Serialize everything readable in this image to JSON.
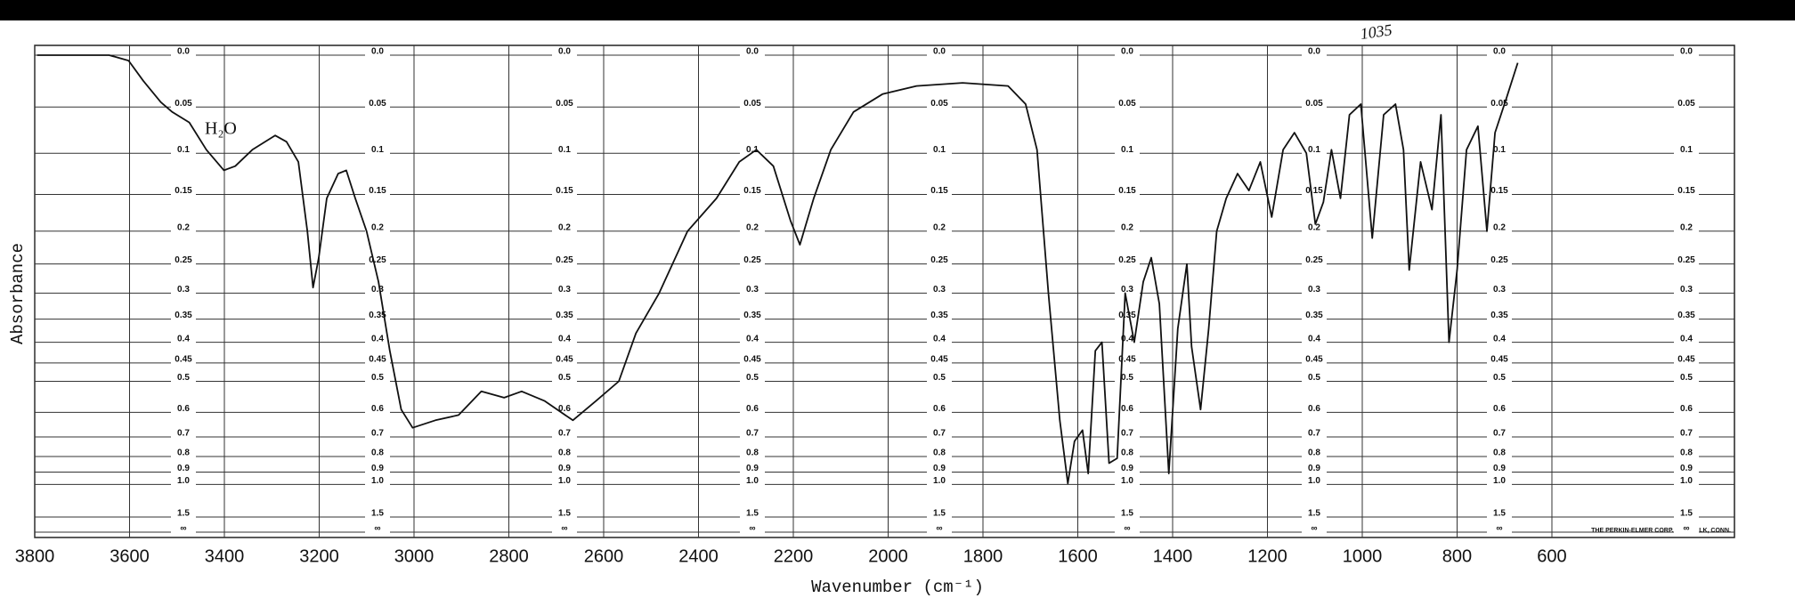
{
  "chart_data": {
    "type": "line",
    "x_label": "Wavenumber (cm⁻¹)",
    "y_label": "Absorbance",
    "yscale": "absorbance",
    "color": "#111111",
    "grid": true,
    "annotations": [
      "H₂O",
      "1035",
      "THE PERKIN-ELMER CORP. NORWALK, CONN."
    ],
    "xlim": [
      3800,
      215
    ],
    "ylim": [
      0,
      null
    ],
    "xticks": [
      3800,
      3600,
      3400,
      3200,
      3000,
      2800,
      2600,
      2400,
      2200,
      2000,
      1800,
      1600,
      1400,
      1200,
      1000,
      800,
      600
    ],
    "yticks": [
      {
        "value": 0,
        "label": "0.0"
      },
      0.05,
      0.1,
      0.15,
      0.2,
      0.25,
      0.3,
      0.35,
      0.4,
      0.45,
      0.5,
      0.6,
      0.7,
      0.8,
      0.9,
      {
        "value": 1,
        "label": "1.0"
      },
      1.5,
      {
        "value": null,
        "label": "∞"
      }
    ],
    "x": [
      3795,
      3643,
      3602,
      3571,
      3534,
      3510,
      3474,
      3438,
      3401,
      3377,
      3341,
      3293,
      3269,
      3244,
      3225,
      3213,
      3201,
      3184,
      3160,
      3143,
      3124,
      3100,
      3075,
      3051,
      3027,
      3003,
      2955,
      2906,
      2858,
      2810,
      2773,
      2725,
      2665,
      2616,
      2568,
      2532,
      2483,
      2423,
      2362,
      2314,
      2278,
      2242,
      2206,
      2186,
      2157,
      2121,
      2073,
      2012,
      1940,
      1843,
      1747,
      1710,
      1686,
      1662,
      1638,
      1621,
      1607,
      1590,
      1578,
      1563,
      1549,
      1534,
      1517,
      1500,
      1481,
      1462,
      1445,
      1428,
      1408,
      1389,
      1370,
      1360,
      1341,
      1324,
      1307,
      1287,
      1263,
      1239,
      1215,
      1191,
      1167,
      1143,
      1118,
      1099,
      1082,
      1065,
      1046,
      1027,
      1003,
      979,
      955,
      930,
      913,
      901,
      877,
      853,
      834,
      817,
      800,
      780,
      756,
      737,
      720,
      696,
      672
    ],
    "values": [
      0.0,
      0.0,
      0.005,
      0.024,
      0.045,
      0.055,
      0.066,
      0.096,
      0.12,
      0.115,
      0.096,
      0.08,
      0.087,
      0.11,
      0.2,
      0.29,
      0.24,
      0.155,
      0.124,
      0.12,
      0.155,
      0.2,
      0.28,
      0.42,
      0.59,
      0.66,
      0.63,
      0.61,
      0.53,
      0.55,
      0.53,
      0.56,
      0.63,
      0.56,
      0.5,
      0.38,
      0.3,
      0.2,
      0.155,
      0.11,
      0.096,
      0.115,
      0.185,
      0.22,
      0.155,
      0.096,
      0.055,
      0.037,
      0.029,
      0.026,
      0.029,
      0.047,
      0.096,
      0.3,
      0.63,
      0.99,
      0.72,
      0.67,
      0.91,
      0.42,
      0.4,
      0.84,
      0.81,
      0.3,
      0.4,
      0.28,
      0.24,
      0.32,
      0.91,
      0.37,
      0.25,
      0.41,
      0.59,
      0.37,
      0.2,
      0.155,
      0.124,
      0.145,
      0.11,
      0.18,
      0.096,
      0.077,
      0.1,
      0.19,
      0.16,
      0.096,
      0.155,
      0.058,
      0.047,
      0.21,
      0.058,
      0.047,
      0.096,
      0.26,
      0.11,
      0.17,
      0.058,
      0.4,
      0.26,
      0.096,
      0.07,
      0.2,
      0.077,
      0.041,
      0.007
    ]
  }
}
